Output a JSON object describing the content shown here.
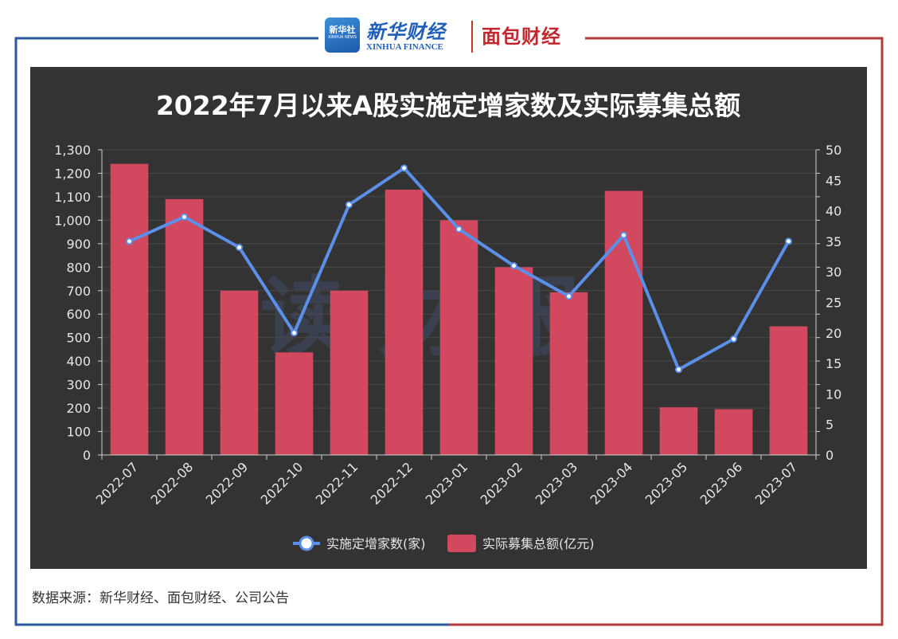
{
  "header": {
    "badge_top": "新华社",
    "badge_bottom": "XINHUA NEWS",
    "xinhua_cn": "新华财经",
    "xinhua_en": "XINHUA FINANCE",
    "mianbao": "面包财经"
  },
  "watermark": "读财报",
  "source": "数据来源：新华财经、面包财经、公司公告",
  "colors": {
    "bar": "#d1485f",
    "line": "#5b8fe8",
    "panel": "#333333",
    "frame_left": "#2a5a9c",
    "frame_right": "#b23a3a"
  },
  "chart_data": {
    "type": "bar",
    "title": "2022年7月以来A股实施定增家数及实际募集总额",
    "categories": [
      "2022-07",
      "2022-08",
      "2022-09",
      "2022-10",
      "2022-11",
      "2022-12",
      "2023-01",
      "2023-02",
      "2023-03",
      "2023-04",
      "2023-05",
      "2023-06",
      "2023-07"
    ],
    "left_axis": {
      "min": 0,
      "max": 1300,
      "step": 100
    },
    "right_axis": {
      "min": 0,
      "max": 50,
      "step": 5
    },
    "series": [
      {
        "name": "实际募集总额(亿元)",
        "type": "bar",
        "axis": "left",
        "values": [
          1240,
          1090,
          700,
          437,
          700,
          1130,
          1000,
          800,
          693,
          1125,
          203,
          195,
          548
        ]
      },
      {
        "name": "实施定增家数(家)",
        "type": "line",
        "axis": "right",
        "values": [
          35,
          39,
          34,
          20,
          41,
          47,
          37,
          31,
          26,
          36,
          14,
          19,
          35
        ]
      }
    ],
    "legend_position": "bottom-center",
    "grid": true
  }
}
